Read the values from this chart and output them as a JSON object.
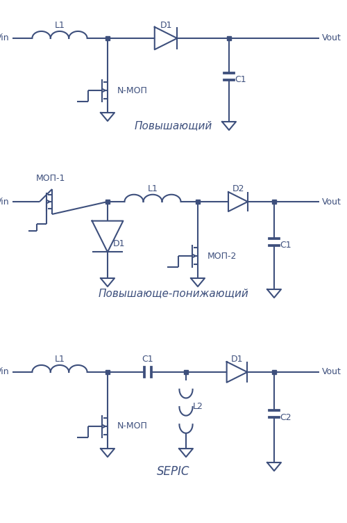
{
  "color": "#3d4f7c",
  "bg_color": "#ffffff",
  "lw": 1.5,
  "dot_r": 3.5,
  "title1": "Повышающий",
  "title2": "Повышающе-понижающий",
  "title3": "SEPIC",
  "fs": 9,
  "fst": 11
}
